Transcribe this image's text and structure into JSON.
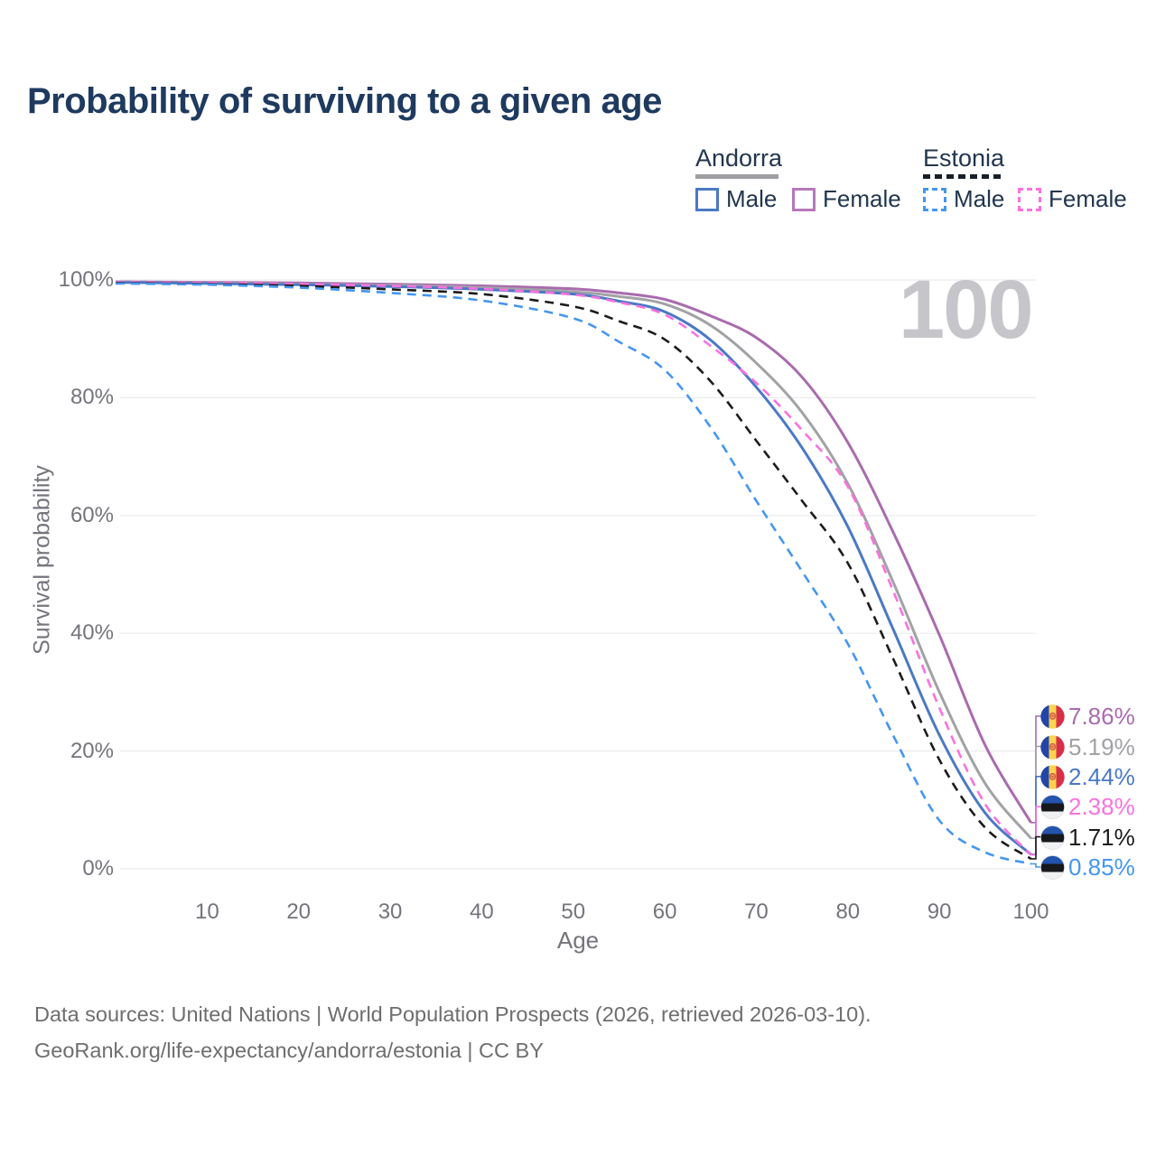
{
  "page": {
    "title": "Probability of surviving to a given age"
  },
  "big_age_label": "100",
  "legend": {
    "groups": [
      {
        "country": "Andorra",
        "line_style": "solid",
        "line_color": "#9f9fa3",
        "items": [
          {
            "label": "Male",
            "color": "#4a79c5"
          },
          {
            "label": "Female",
            "color": "#b678ba"
          }
        ]
      },
      {
        "country": "Estonia",
        "line_style": "dashed",
        "line_color": "#17202a",
        "items": [
          {
            "label": "Male",
            "color": "#4596f0"
          },
          {
            "label": "Female",
            "color": "#fb71dd"
          }
        ]
      }
    ]
  },
  "chart_data": {
    "type": "line",
    "title": "Probability of surviving to a given age",
    "xlabel": "Age",
    "ylabel": "Survival probability",
    "xlim": [
      0,
      100
    ],
    "ylim": [
      0,
      100
    ],
    "grid": "horizontal gridlines only, light gray",
    "legend_position": "top-right, grouped by country",
    "annotation": "100",
    "x_tick_values": [
      10,
      20,
      30,
      40,
      50,
      60,
      70,
      80,
      90,
      100
    ],
    "x_tick_labels": [
      "10",
      "20",
      "30",
      "40",
      "50",
      "60",
      "70",
      "80",
      "90",
      "100"
    ],
    "y_tick_values": [
      0,
      20,
      40,
      60,
      80,
      100
    ],
    "y_tick_labels": [
      "0%",
      "20%",
      "40%",
      "60%",
      "80%",
      "100%"
    ],
    "x": [
      0,
      10,
      20,
      30,
      40,
      50,
      55,
      60,
      65,
      70,
      75,
      80,
      85,
      90,
      95,
      100
    ],
    "series": [
      {
        "name": "Andorra Female",
        "country": "andorra",
        "sex": "female",
        "style": "solid",
        "color": "#a96bae",
        "values": [
          99.7,
          99.6,
          99.5,
          99.3,
          99.0,
          98.5,
          97.8,
          96.7,
          93.9,
          90.2,
          83.5,
          72.4,
          57.0,
          39.7,
          21.0,
          7.86
        ],
        "end_label": "7.86%"
      },
      {
        "name": "Andorra Both sexes",
        "country": "andorra",
        "sex": "both",
        "style": "solid",
        "color": "#a2a2a6",
        "values": [
          99.6,
          99.5,
          99.3,
          99.1,
          98.7,
          98.0,
          97.2,
          95.9,
          92.3,
          85.9,
          77.5,
          65.4,
          48.5,
          30.0,
          14.5,
          5.19
        ],
        "end_label": "5.19%"
      },
      {
        "name": "Andorra Male",
        "country": "andorra",
        "sex": "male",
        "style": "solid",
        "color": "#4a79c5",
        "values": [
          99.6,
          99.4,
          99.2,
          98.9,
          98.4,
          97.6,
          96.4,
          94.6,
          89.8,
          81.8,
          71.5,
          58.1,
          40.5,
          22.7,
          9.5,
          2.44
        ],
        "end_label": "2.44%"
      },
      {
        "name": "Estonia Female",
        "country": "estonia",
        "sex": "female",
        "style": "dashed",
        "color": "#fb71dd",
        "values": [
          99.6,
          99.5,
          99.3,
          99.0,
          98.5,
          97.5,
          96.2,
          94.1,
          88.8,
          82.5,
          74.5,
          64.9,
          47.0,
          27.3,
          11.0,
          2.38
        ],
        "end_label": "2.38%"
      },
      {
        "name": "Estonia Both sexes",
        "country": "estonia",
        "sex": "both",
        "style": "dashed",
        "color": "#1c1c1c",
        "values": [
          99.5,
          99.3,
          99.0,
          98.4,
          97.6,
          95.5,
          93.0,
          89.9,
          82.8,
          72.7,
          62.5,
          51.9,
          35.5,
          18.5,
          7.0,
          1.71
        ],
        "end_label": "1.71%"
      },
      {
        "name": "Estonia Male",
        "country": "estonia",
        "sex": "male",
        "style": "dashed",
        "color": "#4596f0",
        "values": [
          99.4,
          99.2,
          98.7,
          97.8,
          96.5,
          93.5,
          89.5,
          84.7,
          75.0,
          62.5,
          50.5,
          38.2,
          22.5,
          8.2,
          2.8,
          0.85
        ],
        "end_label": "0.85%"
      }
    ]
  },
  "footer": {
    "line1": "Data sources: United Nations | World Population Prospects (2026, retrieved 2026-03-10).",
    "line2": "GeoRank.org/life-expectancy/andorra/estonia | CC BY"
  }
}
